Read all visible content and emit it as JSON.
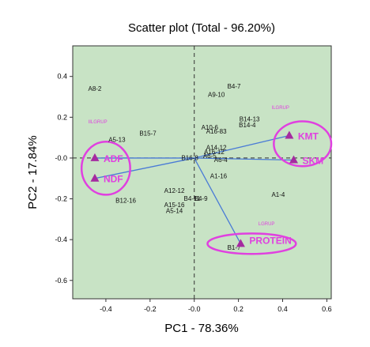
{
  "chart_data": {
    "type": "scatter",
    "title": "Scatter plot (Total - 96.20%)",
    "xlabel": "PC1 - 78.36%",
    "ylabel": "PC2 - 17.84%",
    "xlim": [
      -0.55,
      0.62
    ],
    "ylim": [
      -0.69,
      0.55
    ],
    "x_ticks": [
      "-0.4",
      "-0.2",
      "-0.0",
      "0.2",
      "0.4",
      "0.6"
    ],
    "x_tick_values": [
      -0.4,
      -0.2,
      0.0,
      0.2,
      0.4,
      0.6
    ],
    "y_ticks": [
      "0.4",
      "0.2",
      "-0.0",
      "-0.2",
      "-0.4",
      "-0.6"
    ],
    "y_tick_values": [
      0.4,
      0.2,
      0.0,
      -0.2,
      -0.4,
      -0.6
    ],
    "grid": false,
    "colors": {
      "plot_background": "#c8e3c5",
      "vector_line": "#4a7bd6",
      "loading_marker": "#a52aa0",
      "highlight": "#e040e0",
      "sample_label": "#111111",
      "reference_line": "#333333"
    },
    "samples": [
      {
        "label": "A8-2",
        "x": -0.45,
        "y": 0.33
      },
      {
        "label": "B4-7",
        "x": 0.18,
        "y": 0.34
      },
      {
        "label": "A9-10",
        "x": 0.1,
        "y": 0.3
      },
      {
        "label": "B14-13",
        "x": 0.25,
        "y": 0.18
      },
      {
        "label": "B14-4",
        "x": 0.24,
        "y": 0.15
      },
      {
        "label": "A10-6",
        "x": 0.07,
        "y": 0.14
      },
      {
        "label": "A5-13",
        "x": -0.35,
        "y": 0.08
      },
      {
        "label": "B15-7",
        "x": -0.21,
        "y": 0.11
      },
      {
        "label": "A16-83",
        "x": 0.1,
        "y": 0.12
      },
      {
        "label": "A16-12",
        "x": 0.09,
        "y": 0.02
      },
      {
        "label": "A14-12",
        "x": 0.1,
        "y": 0.04
      },
      {
        "label": "A6-5",
        "x": 0.07,
        "y": 0.0
      },
      {
        "label": "A6-4",
        "x": 0.12,
        "y": -0.02
      },
      {
        "label": "B16-8",
        "x": -0.02,
        "y": -0.01
      },
      {
        "label": "A1-16",
        "x": 0.11,
        "y": -0.1
      },
      {
        "label": "A12-12",
        "x": -0.09,
        "y": -0.17
      },
      {
        "label": "B12-16",
        "x": -0.31,
        "y": -0.22
      },
      {
        "label": "B4-11",
        "x": -0.01,
        "y": -0.21
      },
      {
        "label": "B4-9",
        "x": 0.03,
        "y": -0.21
      },
      {
        "label": "A15-16",
        "x": -0.09,
        "y": -0.24
      },
      {
        "label": "A5-14",
        "x": -0.09,
        "y": -0.27
      },
      {
        "label": "A1-4",
        "x": 0.38,
        "y": -0.19
      },
      {
        "label": "B1-7",
        "x": 0.18,
        "y": -0.45
      }
    ],
    "loadings": [
      {
        "label": "ADF",
        "x": -0.45,
        "y": 0.0
      },
      {
        "label": "NDF",
        "x": -0.45,
        "y": -0.1
      },
      {
        "label": "KMT",
        "x": 0.43,
        "y": 0.11
      },
      {
        "label": "SKM",
        "x": 0.45,
        "y": -0.01
      },
      {
        "label": "PROTEIN",
        "x": 0.21,
        "y": -0.42
      }
    ],
    "group_labels": [
      {
        "label": "IILGRUP",
        "x": -0.48,
        "y": 0.17
      },
      {
        "label": "ILGRUP",
        "x": 0.35,
        "y": 0.24
      },
      {
        "label": "LGRUP",
        "x": 0.29,
        "y": -0.33
      }
    ],
    "highlight_groups": [
      {
        "name": "left",
        "members": [
          "ADF",
          "NDF"
        ],
        "cx": -0.4,
        "cy": -0.05,
        "rx": 0.11,
        "ry": 0.13
      },
      {
        "name": "right",
        "members": [
          "KMT",
          "SKM"
        ],
        "cx": 0.49,
        "cy": 0.07,
        "rx": 0.13,
        "ry": 0.11
      },
      {
        "name": "bottom",
        "members": [
          "PROTEIN"
        ],
        "cx": 0.26,
        "cy": -0.42,
        "rx": 0.2,
        "ry": 0.05
      }
    ]
  }
}
